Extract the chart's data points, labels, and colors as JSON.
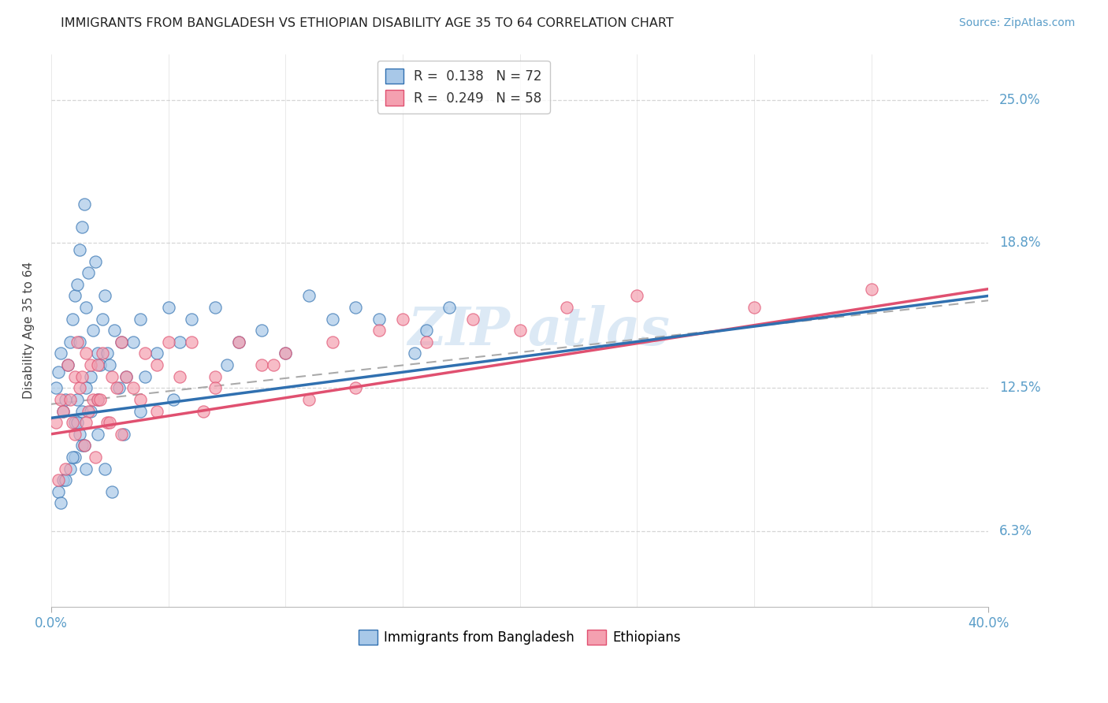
{
  "title": "IMMIGRANTS FROM BANGLADESH VS ETHIOPIAN DISABILITY AGE 35 TO 64 CORRELATION CHART",
  "source": "Source: ZipAtlas.com",
  "ylabel": "Disability Age 35 to 64",
  "ytick_labels": [
    "6.3%",
    "12.5%",
    "18.8%",
    "25.0%"
  ],
  "ytick_values": [
    6.3,
    12.5,
    18.8,
    25.0
  ],
  "legend_entry1": "R =  0.138   N = 72",
  "legend_entry2": "R =  0.249   N = 58",
  "legend_label1": "Immigrants from Bangladesh",
  "legend_label2": "Ethiopians",
  "R1": 0.138,
  "N1": 72,
  "R2": 0.249,
  "N2": 58,
  "color_blue": "#A8C8E8",
  "color_pink": "#F4A0B0",
  "color_trendline_blue": "#3070B0",
  "color_trendline_pink": "#E05070",
  "color_trendline_dashed": "#AAAAAA",
  "watermark": "ZIP atlas",
  "xmin": 0.0,
  "xmax": 40.0,
  "ymin": 3.0,
  "ymax": 27.0,
  "bd_trendline_x0": 0.0,
  "bd_trendline_y0": 11.2,
  "bd_trendline_x1": 40.0,
  "bd_trendline_y1": 16.5,
  "et_trendline_x0": 0.0,
  "et_trendline_y0": 10.5,
  "et_trendline_x1": 40.0,
  "et_trendline_y1": 16.8,
  "dashed_trendline_x0": 0.0,
  "dashed_trendline_y0": 11.8,
  "dashed_trendline_x1": 40.0,
  "dashed_trendline_y1": 16.3,
  "bangladesh_x": [
    0.2,
    0.3,
    0.4,
    0.5,
    0.6,
    0.7,
    0.8,
    0.9,
    1.0,
    1.0,
    1.1,
    1.1,
    1.2,
    1.2,
    1.3,
    1.3,
    1.4,
    1.5,
    1.5,
    1.6,
    1.7,
    1.8,
    1.9,
    2.0,
    2.0,
    2.1,
    2.2,
    2.3,
    2.4,
    2.5,
    2.7,
    2.9,
    3.0,
    3.2,
    3.5,
    3.8,
    4.0,
    4.5,
    5.0,
    5.5,
    6.0,
    7.0,
    8.0,
    9.0,
    10.0,
    11.0,
    12.0,
    13.0,
    14.0,
    15.5,
    17.0,
    1.0,
    1.2,
    1.5,
    0.5,
    0.8,
    1.3,
    0.3,
    0.4,
    0.6,
    0.9,
    1.1,
    1.4,
    1.7,
    2.0,
    2.3,
    2.6,
    3.1,
    3.8,
    5.2,
    7.5,
    16.0
  ],
  "bangladesh_y": [
    12.5,
    13.2,
    14.0,
    11.5,
    12.0,
    13.5,
    14.5,
    15.5,
    16.5,
    11.0,
    17.0,
    12.0,
    18.5,
    14.5,
    19.5,
    11.5,
    20.5,
    16.0,
    12.5,
    17.5,
    13.0,
    15.0,
    18.0,
    14.0,
    12.0,
    13.5,
    15.5,
    16.5,
    14.0,
    13.5,
    15.0,
    12.5,
    14.5,
    13.0,
    14.5,
    15.5,
    13.0,
    14.0,
    16.0,
    14.5,
    15.5,
    16.0,
    14.5,
    15.0,
    14.0,
    16.5,
    15.5,
    16.0,
    15.5,
    14.0,
    16.0,
    9.5,
    10.5,
    9.0,
    8.5,
    9.0,
    10.0,
    8.0,
    7.5,
    8.5,
    9.5,
    11.0,
    10.0,
    11.5,
    10.5,
    9.0,
    8.0,
    10.5,
    11.5,
    12.0,
    13.5,
    15.0
  ],
  "ethiopian_x": [
    0.2,
    0.4,
    0.5,
    0.7,
    0.8,
    0.9,
    1.0,
    1.1,
    1.2,
    1.3,
    1.5,
    1.6,
    1.7,
    1.8,
    2.0,
    2.0,
    2.2,
    2.4,
    2.6,
    2.8,
    3.0,
    3.2,
    3.5,
    4.0,
    4.5,
    5.0,
    5.5,
    6.0,
    7.0,
    8.0,
    9.0,
    10.0,
    12.0,
    14.0,
    15.0,
    16.0,
    18.0,
    20.0,
    22.0,
    25.0,
    30.0,
    35.0,
    1.4,
    1.9,
    2.5,
    3.8,
    6.5,
    11.0,
    0.3,
    0.6,
    1.0,
    1.5,
    2.1,
    3.0,
    4.5,
    7.0,
    9.5,
    13.0
  ],
  "ethiopian_y": [
    11.0,
    12.0,
    11.5,
    13.5,
    12.0,
    11.0,
    13.0,
    14.5,
    12.5,
    13.0,
    14.0,
    11.5,
    13.5,
    12.0,
    13.5,
    12.0,
    14.0,
    11.0,
    13.0,
    12.5,
    14.5,
    13.0,
    12.5,
    14.0,
    13.5,
    14.5,
    13.0,
    14.5,
    13.0,
    14.5,
    13.5,
    14.0,
    14.5,
    15.0,
    15.5,
    14.5,
    15.5,
    15.0,
    16.0,
    16.5,
    16.0,
    16.8,
    10.0,
    9.5,
    11.0,
    12.0,
    11.5,
    12.0,
    8.5,
    9.0,
    10.5,
    11.0,
    12.0,
    10.5,
    11.5,
    12.5,
    13.5,
    12.5
  ]
}
